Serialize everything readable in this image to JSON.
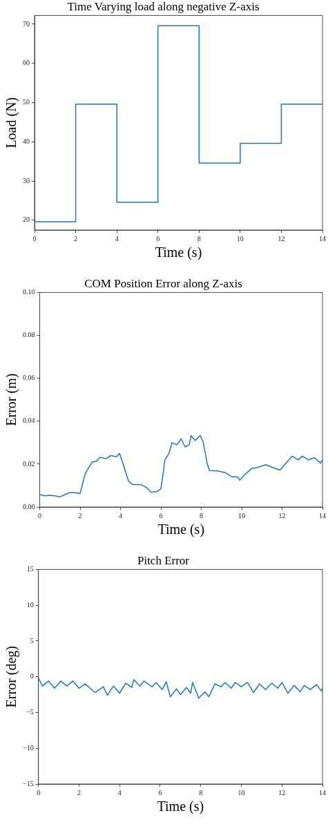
{
  "chart_data": [
    {
      "type": "step",
      "title": "Time Varying load along negative Z-axis",
      "xlabel": "Time (s)",
      "ylabel": "Load (N)",
      "x": [
        0,
        2,
        4,
        6,
        8,
        10,
        12,
        14
      ],
      "series": [
        {
          "color": "#1f77b4",
          "values": [
            19.6,
            49.6,
            24.6,
            69.6,
            34.6,
            39.6,
            49.6,
            49.6
          ]
        }
      ],
      "xlim": [
        0,
        14
      ],
      "xticks": [
        0,
        2,
        4,
        6,
        8,
        10,
        12,
        14
      ],
      "ylim": [
        17.5,
        72.2
      ],
      "yticks": [
        20,
        30,
        40,
        50,
        60,
        70
      ],
      "grid": false,
      "legend": false
    },
    {
      "type": "line",
      "title": "COM Position Error along Z-axis",
      "xlabel": "Time (s)",
      "ylabel": "Error (m)",
      "x": [
        0,
        0.25,
        0.5,
        0.75,
        1.0,
        1.25,
        1.5,
        1.75,
        2.0,
        2.1,
        2.25,
        2.4,
        2.6,
        2.8,
        3.0,
        3.3,
        3.5,
        3.8,
        3.95,
        4.2,
        4.4,
        4.6,
        5.0,
        5.3,
        5.5,
        5.8,
        6.0,
        6.1,
        6.2,
        6.4,
        6.55,
        6.8,
        7.0,
        7.2,
        7.4,
        7.5,
        7.7,
        7.95,
        8.1,
        8.3,
        8.4,
        8.8,
        9.2,
        9.5,
        9.8,
        9.9,
        10.2,
        10.5,
        10.8,
        11.2,
        11.5,
        11.9,
        12.2,
        12.5,
        12.8,
        13.0,
        13.3,
        13.6,
        13.9,
        14
      ],
      "series": [
        {
          "color": "#1f77b4",
          "values": [
            0.0058,
            0.0052,
            0.0055,
            0.0052,
            0.0047,
            0.0058,
            0.0068,
            0.0067,
            0.0063,
            0.01,
            0.0155,
            0.018,
            0.021,
            0.0213,
            0.0232,
            0.0225,
            0.024,
            0.0235,
            0.025,
            0.018,
            0.012,
            0.0105,
            0.0105,
            0.009,
            0.007,
            0.0072,
            0.0085,
            0.015,
            0.022,
            0.025,
            0.03,
            0.029,
            0.0318,
            0.028,
            0.029,
            0.0333,
            0.031,
            0.0333,
            0.03,
            0.02,
            0.017,
            0.0168,
            0.016,
            0.0142,
            0.014,
            0.0125,
            0.0155,
            0.018,
            0.0185,
            0.0197,
            0.0185,
            0.0172,
            0.0205,
            0.0237,
            0.022,
            0.0237,
            0.022,
            0.023,
            0.0205,
            0.022
          ]
        }
      ],
      "xlim": [
        0,
        14
      ],
      "xticks": [
        0,
        2,
        4,
        6,
        8,
        10,
        12,
        14
      ],
      "ylim": [
        0,
        0.1
      ],
      "yticks": [
        {
          "value": 0,
          "label": "0.00"
        },
        {
          "value": 0.02,
          "label": "0.02"
        },
        {
          "value": 0.04,
          "label": "0.04"
        },
        {
          "value": 0.06,
          "label": "0.06"
        },
        {
          "value": 0.08,
          "label": "0.08"
        },
        {
          "value": 0.1,
          "label": "0.10"
        }
      ],
      "grid": false,
      "legend": false
    },
    {
      "type": "line",
      "title": "Pitch Error",
      "xlabel": "Time (s)",
      "ylabel": "Error (deg)",
      "x": [
        0,
        0.2,
        0.5,
        0.8,
        1.1,
        1.4,
        1.7,
        2.0,
        2.3,
        2.8,
        3.2,
        3.4,
        3.7,
        4.0,
        4.3,
        4.6,
        4.7,
        5.0,
        5.2,
        5.6,
        5.8,
        6.1,
        6.3,
        6.5,
        6.8,
        7.0,
        7.3,
        7.5,
        7.6,
        7.9,
        8.2,
        8.4,
        8.7,
        9.0,
        9.2,
        9.5,
        9.7,
        10.0,
        10.3,
        10.6,
        10.9,
        11.2,
        11.5,
        11.8,
        12.0,
        12.3,
        12.6,
        12.9,
        13.1,
        13.4,
        13.7,
        13.95,
        14
      ],
      "series": [
        {
          "color": "#1f77b4",
          "values": [
            -0.2,
            -1.3,
            -0.6,
            -1.6,
            -0.6,
            -1.3,
            -0.6,
            -1.6,
            -1.0,
            -2.2,
            -1.4,
            -2.6,
            -1.3,
            -2.3,
            -0.9,
            -1.5,
            -0.4,
            -1.3,
            -0.6,
            -1.4,
            -0.8,
            -1.8,
            -0.7,
            -2.8,
            -1.7,
            -2.5,
            -1.5,
            -2.3,
            -0.8,
            -3.0,
            -2.1,
            -2.8,
            -1.0,
            -1.4,
            -0.8,
            -1.6,
            -0.8,
            -1.4,
            -0.8,
            -2.2,
            -1.0,
            -1.8,
            -0.9,
            -1.6,
            -0.8,
            -2.3,
            -1.2,
            -2.1,
            -1.2,
            -1.8,
            -1.1,
            -2.0,
            -1.6
          ]
        }
      ],
      "xlim": [
        0,
        14
      ],
      "xticks": [
        0,
        2,
        4,
        6,
        8,
        10,
        12,
        14
      ],
      "ylim": [
        -15,
        15
      ],
      "yticks": [
        {
          "value": -15,
          "label": "−15"
        },
        {
          "value": -10,
          "label": "−10"
        },
        {
          "value": -5,
          "label": "−5"
        },
        0,
        5,
        10,
        15
      ],
      "grid": false,
      "legend": false
    }
  ]
}
